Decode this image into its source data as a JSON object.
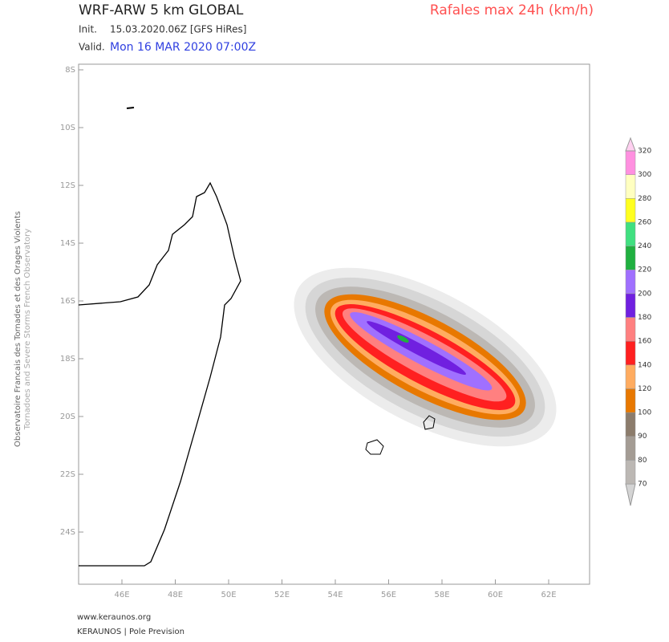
{
  "header": {
    "model": "WRF-ARW 5 km GLOBAL",
    "product": "Rafales max 24h (km/h)",
    "init_label": "Init.",
    "init": "15.03.2020.06Z [GFS HiRes]",
    "valid_label": "Valid.",
    "valid": "Mon 16 MAR 2020 07:00Z"
  },
  "map": {
    "lat_labels": [
      "8S",
      "10S",
      "12S",
      "14S",
      "16S",
      "18S",
      "20S",
      "22S",
      "24S"
    ],
    "lon_labels": [
      "46E",
      "48E",
      "50E",
      "52E",
      "54E",
      "56E",
      "58E",
      "60E",
      "62E"
    ]
  },
  "colorbar": {
    "labels": [
      "70",
      "80",
      "90",
      "100",
      "120",
      "140",
      "160",
      "180",
      "200",
      "220",
      "240",
      "260",
      "280",
      "300",
      "320"
    ],
    "colors": [
      "#d4d4d4",
      "#bcb8b4",
      "#a49c94",
      "#8c7c6c",
      "#e87800",
      "#ffac60",
      "#ff2020",
      "#ff8080",
      "#7020e0",
      "#a070ff",
      "#20b040",
      "#40e080",
      "#ffff20",
      "#ffffc0",
      "#ff90e0",
      "#ffd0f0"
    ]
  },
  "side_text": [
    "Observatoire Francais des Tornades et des Orages Violents",
    "Tornadoes and Severe Storms French Observatory"
  ],
  "footer": {
    "url": "www.keraunos.org",
    "credit": "KERAUNOS | Pole Prevision"
  }
}
